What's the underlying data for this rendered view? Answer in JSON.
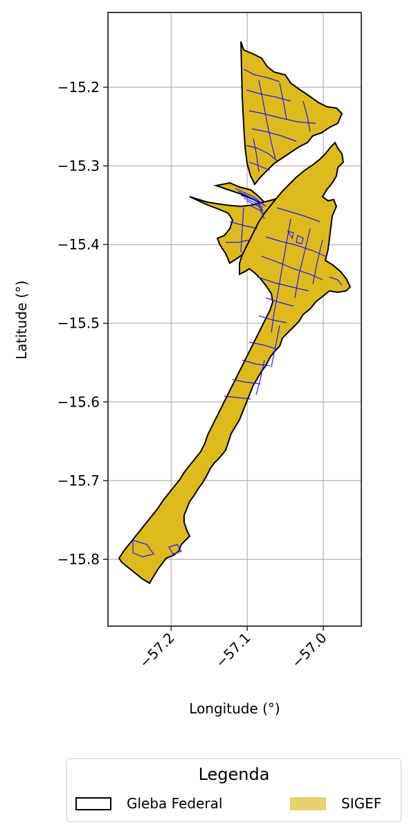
{
  "map": {
    "xlabel": "Longitude (°)",
    "ylabel": "Latitude (°)",
    "x_ticks": [
      "−57.2",
      "−57.1",
      "−57.0"
    ],
    "y_ticks": [
      "−15.2",
      "−15.3",
      "−15.4",
      "−15.5",
      "−15.6",
      "−15.7",
      "−15.8"
    ],
    "xlim": [
      -57.283,
      -56.95
    ],
    "ylim": [
      -15.885,
      -15.105
    ],
    "grid": true,
    "colors": {
      "gleba_outline": "#000000",
      "sigef_fill": "#dfba1d",
      "parcel_lines": "#1a1aff",
      "grid": "#b0b0b0"
    }
  },
  "legend": {
    "title": "Legenda",
    "items": [
      {
        "label": "Gleba Federal",
        "style": "outline",
        "color": "#000000"
      },
      {
        "label": "SIGEF",
        "style": "fill",
        "color": "#e6d26e"
      }
    ]
  }
}
